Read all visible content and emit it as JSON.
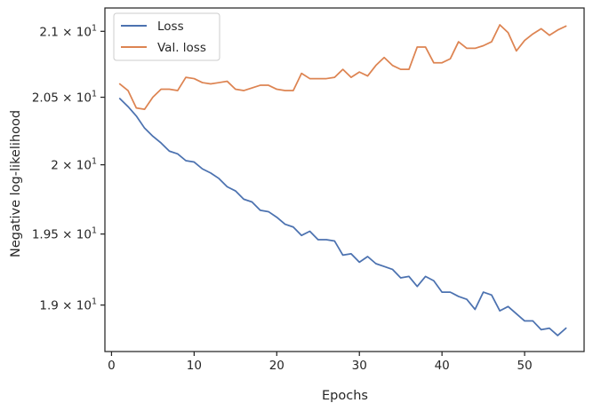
{
  "chart_data": {
    "type": "line",
    "title": "",
    "xlabel": "Epochs",
    "ylabel": "Negative log-likelihood",
    "xlim": [
      -0.8,
      57.2
    ],
    "ylim": [
      18.68,
      21.18
    ],
    "y_scale": "log",
    "grid": false,
    "legend_position": "top-left",
    "x_ticks": [
      0,
      10,
      20,
      30,
      40,
      50
    ],
    "x_tick_labels": [
      "0",
      "10",
      "20",
      "30",
      "40",
      "50"
    ],
    "y_ticks": [
      {
        "value": 19.0,
        "mantissa": "1.9"
      },
      {
        "value": 19.5,
        "mantissa": "1.95"
      },
      {
        "value": 20.0,
        "mantissa": "2"
      },
      {
        "value": 20.5,
        "mantissa": "2.05"
      },
      {
        "value": 21.0,
        "mantissa": "2.1"
      }
    ],
    "y_tick_base": "10",
    "y_tick_exponent": "1",
    "x": [
      1,
      2,
      3,
      4,
      5,
      6,
      7,
      8,
      9,
      10,
      11,
      12,
      13,
      14,
      15,
      16,
      17,
      18,
      19,
      20,
      21,
      22,
      23,
      24,
      25,
      26,
      27,
      28,
      29,
      30,
      31,
      32,
      33,
      34,
      35,
      36,
      37,
      38,
      39,
      40,
      41,
      42,
      43,
      44,
      45,
      46,
      47,
      48,
      49,
      50,
      51,
      52,
      53,
      54,
      55
    ],
    "series": [
      {
        "name": "Loss",
        "color": "#4c72b0",
        "values": [
          20.49,
          20.43,
          20.36,
          20.27,
          20.21,
          20.16,
          20.1,
          20.08,
          20.03,
          20.02,
          19.97,
          19.94,
          19.9,
          19.84,
          19.81,
          19.75,
          19.73,
          19.67,
          19.66,
          19.62,
          19.57,
          19.55,
          19.49,
          19.52,
          19.46,
          19.46,
          19.45,
          19.35,
          19.36,
          19.3,
          19.34,
          19.29,
          19.27,
          19.25,
          19.19,
          19.2,
          19.13,
          19.2,
          19.17,
          19.09,
          19.09,
          19.06,
          19.04,
          18.97,
          19.09,
          19.07,
          18.96,
          18.99,
          18.94,
          18.89,
          18.89,
          18.83,
          18.84,
          18.79,
          18.84
        ]
      },
      {
        "name": "Val. loss",
        "color": "#dd8452",
        "values": [
          20.6,
          20.55,
          20.42,
          20.41,
          20.5,
          20.56,
          20.56,
          20.55,
          20.65,
          20.64,
          20.61,
          20.6,
          20.61,
          20.62,
          20.56,
          20.55,
          20.57,
          20.59,
          20.59,
          20.56,
          20.55,
          20.55,
          20.68,
          20.64,
          20.64,
          20.64,
          20.65,
          20.71,
          20.65,
          20.69,
          20.66,
          20.74,
          20.8,
          20.74,
          20.71,
          20.71,
          20.88,
          20.88,
          20.76,
          20.76,
          20.79,
          20.92,
          20.87,
          20.87,
          20.89,
          20.92,
          21.05,
          20.99,
          20.85,
          20.93,
          20.98,
          21.02,
          20.97,
          21.01,
          21.04
        ]
      }
    ]
  }
}
